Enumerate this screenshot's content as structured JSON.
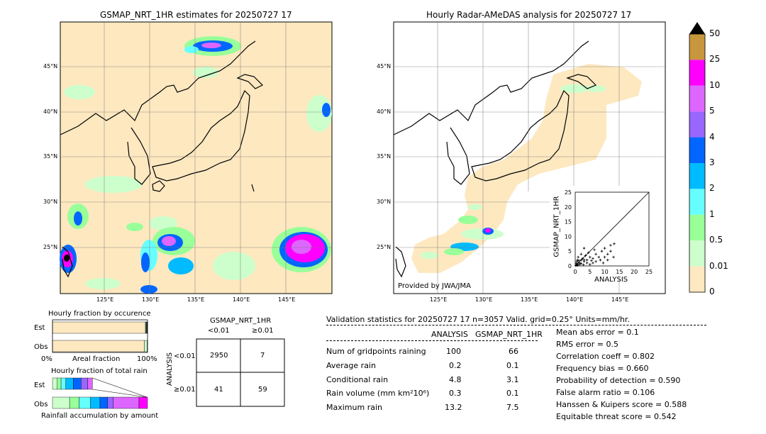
{
  "left_map": {
    "title": "GSMAP_NRT_1HR estimates for 20250727 17",
    "lat_labels": [
      "45°N",
      "40°N",
      "35°N",
      "30°N",
      "25°N"
    ],
    "lon_labels": [
      "125°E",
      "130°E",
      "135°E",
      "140°E",
      "145°E"
    ]
  },
  "right_map": {
    "title": "Hourly Radar-AMeDAS analysis for 20250727 17",
    "lat_labels": [
      "45°N",
      "40°N",
      "35°N",
      "30°N",
      "25°N"
    ],
    "lon_labels": [
      "125°E",
      "130°E",
      "135°E",
      "140°E",
      "145°E"
    ],
    "credit": "Provided by JWA/JMA"
  },
  "colorbar": {
    "labels": [
      "50",
      "25",
      "10",
      "5",
      "4",
      "3",
      "2",
      "1",
      "0.5",
      "0.01",
      "0"
    ],
    "colors": [
      "#c8963c",
      "#ff00ff",
      "#dd66ff",
      "#9966ff",
      "#0066ff",
      "#00bbff",
      "#66ffff",
      "#99ff99",
      "#ccffcc",
      "#fde8c0"
    ]
  },
  "chart_data": [
    {
      "type": "scatter",
      "xlabel": "ANALYSIS",
      "ylabel": "GSMAP_NRT_1HR",
      "xlim": [
        0,
        25
      ],
      "ylim": [
        0,
        25
      ],
      "ticks": [
        "0",
        "5",
        "10",
        "15",
        "20",
        "25"
      ],
      "points": [
        [
          0.2,
          0.1
        ],
        [
          0.5,
          0.3
        ],
        [
          1,
          0.5
        ],
        [
          1.5,
          1
        ],
        [
          2,
          0.8
        ],
        [
          0.8,
          2
        ],
        [
          3,
          1.5
        ],
        [
          2.5,
          2.5
        ],
        [
          4,
          2
        ],
        [
          5,
          3
        ],
        [
          6,
          2.5
        ],
        [
          7,
          4
        ],
        [
          8,
          3
        ],
        [
          9,
          5
        ],
        [
          10,
          6
        ],
        [
          11,
          4
        ],
        [
          12,
          7
        ],
        [
          13.2,
          7.5
        ],
        [
          13,
          3
        ],
        [
          1,
          3
        ],
        [
          0.5,
          1.5
        ],
        [
          2,
          4
        ],
        [
          3,
          6
        ],
        [
          1.5,
          0.5
        ],
        [
          4,
          1
        ],
        [
          5,
          0.5
        ],
        [
          6,
          1
        ],
        [
          3.5,
          3.5
        ],
        [
          7,
          1.5
        ],
        [
          8.5,
          2
        ],
        [
          9.5,
          1
        ],
        [
          11,
          2
        ],
        [
          12,
          5
        ],
        [
          0.3,
          0.8
        ],
        [
          1.2,
          1.8
        ],
        [
          2.8,
          0.4
        ],
        [
          4.5,
          4.5
        ],
        [
          6.5,
          5.5
        ],
        [
          10,
          3
        ],
        [
          2,
          2
        ],
        [
          1,
          1
        ],
        [
          0.7,
          0.2
        ],
        [
          3,
          2
        ],
        [
          5.5,
          1.8
        ]
      ]
    },
    {
      "type": "bar",
      "title": "Hourly fraction by occurence",
      "categories": [
        "Est",
        "Obs"
      ],
      "axis_labels": [
        "0%",
        "Areal fraction",
        "100%"
      ],
      "series": [
        {
          "values": [
            0.978,
            0.967
          ],
          "color": "#fde8c0"
        },
        {
          "values": [
            0.006,
            0.03
          ],
          "color": "#ccffcc"
        },
        {
          "values": [
            0.004,
            0.0
          ],
          "color": "#99ff99"
        },
        {
          "values": [
            0.005,
            0.0
          ],
          "color": "#66ffff"
        },
        {
          "values": [
            0.003,
            0.0
          ],
          "color": "#00bbff"
        },
        {
          "values": [
            0.002,
            0.0
          ],
          "color": "#0066ff"
        },
        {
          "values": [
            0.002,
            0.003
          ],
          "color": "#000000"
        }
      ]
    },
    {
      "type": "bar",
      "title": "Hourly fraction of total rain",
      "categories": [
        "Est",
        "Obs"
      ],
      "axis_labels": [
        "Rainfall accumulation by amount"
      ],
      "series": [
        {
          "values": [
            0.05,
            0.18
          ],
          "color": "#ccffcc"
        },
        {
          "values": [
            0.04,
            0.1
          ],
          "color": "#99ff99"
        },
        {
          "values": [
            0.05,
            0.12
          ],
          "color": "#66ffff"
        },
        {
          "values": [
            0.08,
            0.1
          ],
          "color": "#00bbff"
        },
        {
          "values": [
            0.08,
            0.08
          ],
          "color": "#0066ff"
        },
        {
          "values": [
            0.07,
            0.06
          ],
          "color": "#9966ff"
        },
        {
          "values": [
            0.05,
            0.27
          ],
          "color": "#dd66ff"
        },
        {
          "values": [
            0.0,
            0.09
          ],
          "color": "#ff00ff"
        }
      ]
    }
  ],
  "contingency": {
    "col_title": "GSMAP_NRT_1HR",
    "col_labels": [
      "<0.01",
      "≥0.01"
    ],
    "row_title": "ANALYSIS",
    "row_labels": [
      "<0.01",
      "≥0.01"
    ],
    "cells": [
      "2950",
      "7",
      "41",
      "59"
    ]
  },
  "validation": {
    "header": "Validation statistics for 20250727 17  n=3057 Valid. grid=0.25° Units=mm/hr.",
    "col1": "ANALYSIS",
    "col2": "GSMAP_NRT_1HR",
    "rows": [
      {
        "label": "Num of gridpoints raining",
        "a": "100",
        "g": "66"
      },
      {
        "label": "Average rain",
        "a": "0.2",
        "g": "0.1"
      },
      {
        "label": "Conditional rain",
        "a": "4.8",
        "g": "3.1"
      },
      {
        "label": "Rain volume (mm km²10⁶)",
        "a": "0.3",
        "g": "0.1"
      },
      {
        "label": "Maximum rain",
        "a": "13.2",
        "g": "7.5"
      }
    ],
    "scores": [
      "Mean abs error =    0.1",
      "RMS error =    0.5",
      "Correlation coeff =  0.802",
      "Frequency bias =  0.660",
      "Probability of detection =  0.590",
      "False alarm ratio =  0.106",
      "Hanssen & Kuipers score =  0.588",
      "Equitable threat score =  0.542"
    ]
  }
}
